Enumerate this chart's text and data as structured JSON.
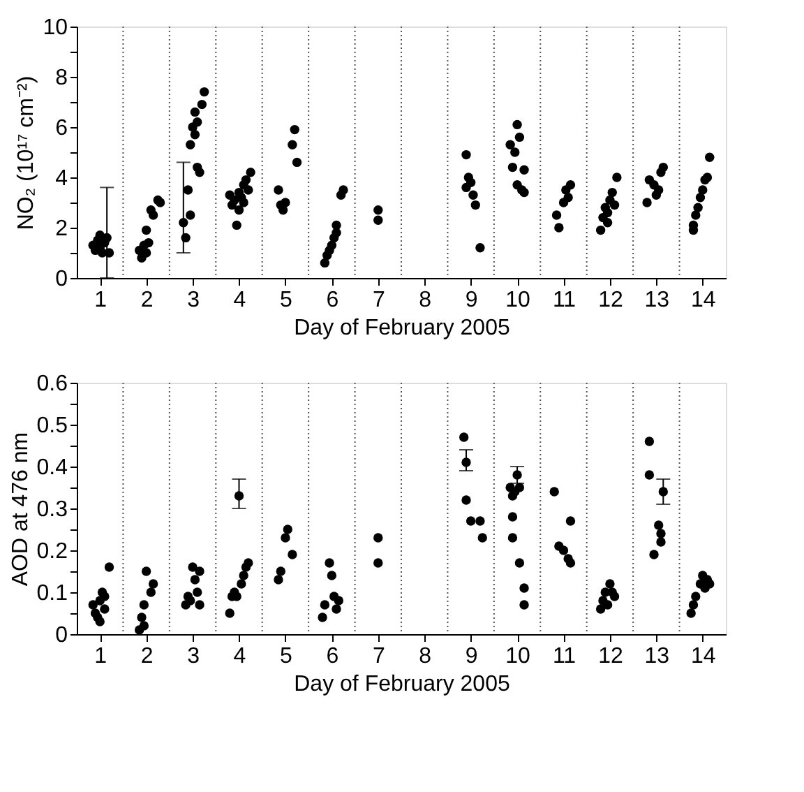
{
  "chart_data": [
    {
      "type": "scatter",
      "ylabel": "NO₂ (10¹⁷ cm⁻²)",
      "xlabel": "Day of February 2005",
      "marker": "circle",
      "grid": false,
      "xlim": [
        0.5,
        14.5
      ],
      "xticks": [
        1,
        2,
        3,
        4,
        5,
        6,
        7,
        8,
        9,
        10,
        11,
        12,
        13,
        14
      ],
      "ylim": [
        0,
        10
      ],
      "yticks": [
        0,
        {
          "value": 1,
          "label": null
        },
        2,
        {
          "value": 3,
          "label": null
        },
        4,
        {
          "value": 5,
          "label": null
        },
        6,
        {
          "value": 7,
          "label": null
        },
        8,
        {
          "value": 9,
          "label": null
        },
        10
      ],
      "ref_lines": [
        {
          "axis": "x",
          "value": 1.5,
          "line_style": "dotted"
        },
        {
          "axis": "x",
          "value": 2.5,
          "line_style": "dotted"
        },
        {
          "axis": "x",
          "value": 3.5,
          "line_style": "dotted"
        },
        {
          "axis": "x",
          "value": 4.5,
          "line_style": "dotted"
        },
        {
          "axis": "x",
          "value": 5.5,
          "line_style": "dotted"
        },
        {
          "axis": "x",
          "value": 6.5,
          "line_style": "dotted"
        },
        {
          "axis": "x",
          "value": 7.5,
          "line_style": "dotted"
        },
        {
          "axis": "x",
          "value": 8.5,
          "line_style": "dotted"
        },
        {
          "axis": "x",
          "value": 9.5,
          "line_style": "dotted"
        },
        {
          "axis": "x",
          "value": 10.5,
          "line_style": "dotted"
        },
        {
          "axis": "x",
          "value": 11.5,
          "line_style": "dotted"
        },
        {
          "axis": "x",
          "value": 12.5,
          "line_style": "dotted"
        },
        {
          "axis": "x",
          "value": 13.5,
          "line_style": "dotted"
        }
      ],
      "series": [
        {
          "color": "#000000",
          "x": [
            0.85,
            0.9,
            0.95,
            1.0,
            1.0,
            1.05,
            1.1,
            1.15,
            1.2,
            1.85,
            1.9,
            1.95,
            2.0,
            2.0,
            2.05,
            2.1,
            2.15,
            2.25,
            2.3,
            2.8,
            2.85,
            2.9,
            2.95,
            2.95,
            3.0,
            3.05,
            3.05,
            3.1,
            3.1,
            3.15,
            3.2,
            3.25,
            3.8,
            3.85,
            3.9,
            3.95,
            4.0,
            4.0,
            4.05,
            4.1,
            4.1,
            4.15,
            4.2,
            4.25,
            4.85,
            4.9,
            4.95,
            5.0,
            5.15,
            5.2,
            5.25,
            5.85,
            5.9,
            5.95,
            6.0,
            6.05,
            6.1,
            6.1,
            6.2,
            6.25,
            7.0,
            7.0,
            8.9,
            8.9,
            8.95,
            9.0,
            9.05,
            9.1,
            9.2,
            9.85,
            9.9,
            9.95,
            10.0,
            10.0,
            10.05,
            10.1,
            10.15,
            10.15,
            10.85,
            10.9,
            11.0,
            11.05,
            11.1,
            11.15,
            11.8,
            11.85,
            11.9,
            11.95,
            11.95,
            12.0,
            12.05,
            12.1,
            12.15,
            12.8,
            12.85,
            12.95,
            13.0,
            13.05,
            13.1,
            13.15,
            13.8,
            13.8,
            13.85,
            13.9,
            13.95,
            14.0,
            14.05,
            14.1,
            14.15
          ],
          "values": [
            1.3,
            1.1,
            1.5,
            1.2,
            1.7,
            1.0,
            1.4,
            1.6,
            1.0,
            1.1,
            0.8,
            1.3,
            1.0,
            1.9,
            1.4,
            2.7,
            2.5,
            3.1,
            3.0,
            2.2,
            1.6,
            3.5,
            2.5,
            5.3,
            6.0,
            6.6,
            5.7,
            4.4,
            6.2,
            4.2,
            6.9,
            7.4,
            3.3,
            2.9,
            3.1,
            2.1,
            2.7,
            3.4,
            3.2,
            3.7,
            3.0,
            3.9,
            3.5,
            4.2,
            3.5,
            2.9,
            2.7,
            3.0,
            5.3,
            5.9,
            4.6,
            0.6,
            0.9,
            1.1,
            1.3,
            1.6,
            1.8,
            2.1,
            3.3,
            3.5,
            2.7,
            2.3,
            4.9,
            3.6,
            4.0,
            3.8,
            3.3,
            2.9,
            1.2,
            5.3,
            4.4,
            5.0,
            6.1,
            3.7,
            5.6,
            3.5,
            4.3,
            3.4,
            2.5,
            2.0,
            3.0,
            3.5,
            3.2,
            3.7,
            1.9,
            2.4,
            2.8,
            2.6,
            2.2,
            3.1,
            3.4,
            2.9,
            4.0,
            3.0,
            3.9,
            3.7,
            3.3,
            3.5,
            4.2,
            4.4,
            2.1,
            1.9,
            2.5,
            2.8,
            3.2,
            3.5,
            3.9,
            4.0,
            4.8
          ],
          "errors": [
            null,
            null,
            null,
            null,
            null,
            null,
            null,
            [
              0,
              3.6
            ],
            null,
            null,
            null,
            null,
            null,
            null,
            null,
            null,
            null,
            null,
            null,
            [
              1.0,
              4.6
            ],
            null,
            null,
            null,
            null,
            null,
            null,
            null,
            null,
            null,
            null,
            null,
            null,
            null,
            null,
            null,
            null,
            null,
            null,
            null,
            null,
            null,
            null,
            null,
            null,
            null,
            null,
            null,
            null,
            null,
            null,
            null,
            null,
            null,
            null,
            null,
            null,
            null,
            null,
            null,
            null,
            null,
            null,
            null,
            null,
            null,
            null,
            null,
            null,
            null,
            null,
            null,
            null,
            null,
            null,
            null,
            null,
            null,
            null,
            null,
            null,
            null,
            null,
            null,
            null,
            null,
            null,
            null,
            null,
            null,
            null,
            null,
            null,
            null,
            null,
            null,
            null,
            null,
            null,
            null,
            null,
            null,
            null,
            null,
            null,
            null,
            null,
            null,
            null,
            null
          ]
        }
      ]
    },
    {
      "type": "scatter",
      "ylabel": "AOD at 476 nm",
      "xlabel": "Day of February 2005",
      "marker": "circle",
      "grid": false,
      "xlim": [
        0.5,
        14.5
      ],
      "xticks": [
        1,
        2,
        3,
        4,
        5,
        6,
        7,
        8,
        9,
        10,
        11,
        12,
        13,
        14
      ],
      "ylim": [
        0,
        0.6
      ],
      "yticks": [
        0,
        {
          "value": 0.05,
          "label": null
        },
        0.1,
        {
          "value": 0.15,
          "label": null
        },
        0.2,
        {
          "value": 0.25,
          "label": null
        },
        0.3,
        {
          "value": 0.35,
          "label": null
        },
        0.4,
        {
          "value": 0.45,
          "label": null
        },
        0.5,
        {
          "value": 0.55,
          "label": null
        },
        0.6
      ],
      "ref_lines": [
        {
          "axis": "x",
          "value": 1.5,
          "line_style": "dotted"
        },
        {
          "axis": "x",
          "value": 2.5,
          "line_style": "dotted"
        },
        {
          "axis": "x",
          "value": 3.5,
          "line_style": "dotted"
        },
        {
          "axis": "x",
          "value": 4.5,
          "line_style": "dotted"
        },
        {
          "axis": "x",
          "value": 5.5,
          "line_style": "dotted"
        },
        {
          "axis": "x",
          "value": 6.5,
          "line_style": "dotted"
        },
        {
          "axis": "x",
          "value": 7.5,
          "line_style": "dotted"
        },
        {
          "axis": "x",
          "value": 8.5,
          "line_style": "dotted"
        },
        {
          "axis": "x",
          "value": 9.5,
          "line_style": "dotted"
        },
        {
          "axis": "x",
          "value": 10.5,
          "line_style": "dotted"
        },
        {
          "axis": "x",
          "value": 11.5,
          "line_style": "dotted"
        },
        {
          "axis": "x",
          "value": 12.5,
          "line_style": "dotted"
        },
        {
          "axis": "x",
          "value": 13.5,
          "line_style": "dotted"
        }
      ],
      "series": [
        {
          "color": "#000000",
          "x": [
            0.85,
            0.9,
            0.95,
            1.0,
            1.0,
            1.05,
            1.1,
            1.1,
            1.2,
            1.85,
            1.9,
            1.95,
            1.95,
            2.0,
            2.1,
            2.15,
            2.85,
            2.9,
            2.95,
            3.0,
            3.05,
            3.1,
            3.15,
            3.15,
            3.8,
            3.85,
            3.9,
            3.95,
            4.0,
            4.05,
            4.1,
            4.15,
            4.2,
            4.85,
            4.9,
            5.0,
            5.05,
            5.15,
            5.8,
            5.85,
            5.95,
            6.0,
            6.05,
            6.1,
            6.15,
            7.0,
            7.0,
            8.85,
            8.9,
            8.9,
            9.0,
            9.2,
            9.25,
            9.85,
            9.9,
            9.95,
            10.0,
            10.05,
            9.9,
            9.9,
            10.05,
            10.15,
            10.15,
            10.8,
            10.9,
            11.0,
            11.1,
            11.15,
            11.15,
            11.8,
            11.85,
            11.9,
            11.95,
            12.0,
            12.05,
            12.1,
            12.85,
            12.85,
            12.95,
            13.05,
            13.1,
            13.15,
            13.1,
            13.75,
            13.8,
            13.85,
            13.95,
            14.0,
            14.05,
            14.1,
            14.15
          ],
          "values": [
            0.07,
            0.05,
            0.04,
            0.08,
            0.03,
            0.1,
            0.06,
            0.09,
            0.16,
            0.01,
            0.04,
            0.02,
            0.07,
            0.15,
            0.1,
            0.12,
            0.07,
            0.09,
            0.08,
            0.16,
            0.13,
            0.1,
            0.15,
            0.07,
            0.05,
            0.09,
            0.1,
            0.09,
            0.33,
            0.12,
            0.14,
            0.16,
            0.17,
            0.13,
            0.15,
            0.23,
            0.25,
            0.19,
            0.04,
            0.07,
            0.17,
            0.14,
            0.09,
            0.06,
            0.08,
            0.23,
            0.17,
            0.47,
            0.41,
            0.32,
            0.27,
            0.27,
            0.23,
            0.35,
            0.33,
            0.34,
            0.38,
            0.35,
            0.28,
            0.23,
            0.17,
            0.11,
            0.07,
            0.34,
            0.21,
            0.2,
            0.18,
            0.17,
            0.27,
            0.06,
            0.08,
            0.1,
            0.07,
            0.12,
            0.1,
            0.09,
            0.46,
            0.38,
            0.19,
            0.26,
            0.22,
            0.34,
            0.24,
            0.05,
            0.07,
            0.09,
            0.12,
            0.14,
            0.11,
            0.13,
            0.12
          ],
          "errors": [
            null,
            null,
            null,
            null,
            null,
            null,
            null,
            null,
            null,
            null,
            null,
            null,
            null,
            null,
            null,
            null,
            null,
            null,
            null,
            null,
            null,
            null,
            null,
            null,
            null,
            null,
            null,
            null,
            [
              0.3,
              0.37
            ],
            null,
            null,
            null,
            null,
            null,
            null,
            null,
            null,
            null,
            null,
            null,
            null,
            null,
            null,
            null,
            null,
            null,
            null,
            null,
            [
              0.39,
              0.44
            ],
            null,
            null,
            null,
            null,
            null,
            null,
            null,
            [
              0.36,
              0.4
            ],
            null,
            null,
            null,
            null,
            null,
            null,
            null,
            null,
            null,
            null,
            null,
            null,
            null,
            null,
            null,
            null,
            null,
            null,
            null,
            null,
            null,
            null,
            null,
            null,
            [
              0.31,
              0.37
            ],
            null,
            null,
            null,
            null,
            null,
            null,
            null,
            null,
            null
          ]
        }
      ]
    }
  ]
}
